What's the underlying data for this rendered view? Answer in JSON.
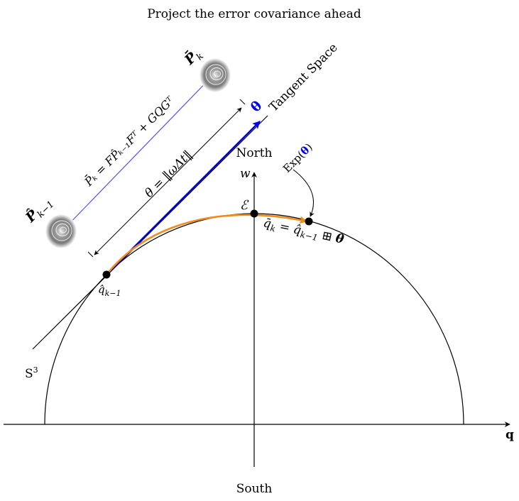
{
  "title": "Project the error covariance ahead",
  "labels": {
    "north": "North",
    "south": "South",
    "w_axis": "w",
    "q_axis": "q",
    "sphere": "S",
    "sphere_sup": "3",
    "tangent_space": "Tangent Space",
    "theta_bold": "θ",
    "epsilon": "ℰ",
    "qhat_prev": "q̂",
    "qhat_prev_sub": "k−1",
    "qbar_k_lhs": "q̄",
    "qbar_k_lhs_sub": "k",
    "qbar_k_eq": " = ",
    "qbar_k_rhs": "q̂",
    "qbar_k_rhs_sub": "k−1",
    "qbar_k_op": " ⊞ ",
    "qbar_k_theta": "θ",
    "exp_text": "Exp(",
    "exp_theta": "θ",
    "exp_close": ")",
    "theta_norm": "θ = ‖ωΔt‖",
    "p_formula": "P̄ₖ = FP̂ₖ₋₁Fᵀ + GQGᵀ",
    "p_bar_k": "P̄",
    "p_bar_k_sub": "k",
    "p_hat_prev": "P̂",
    "p_hat_prev_sub": "k−1"
  },
  "colors": {
    "theta_vector": "#0000ee",
    "geodesic": "#f08c1e",
    "link_line": "#4444ff",
    "ink": "#000000"
  }
}
